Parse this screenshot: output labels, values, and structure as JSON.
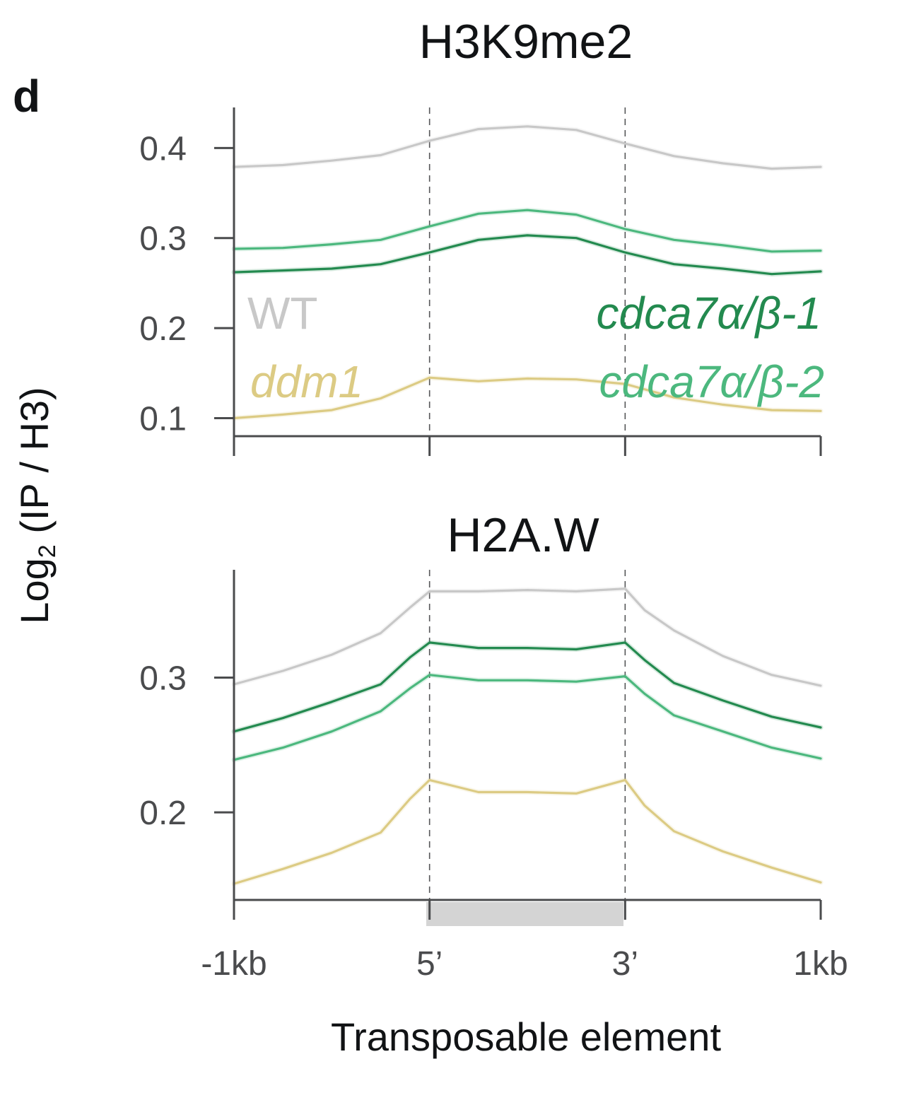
{
  "figure": {
    "panel_letter": "d",
    "shared_ylabel_prefix": "Log",
    "shared_ylabel_sub": "2",
    "shared_ylabel_suffix": " (IP / H3)",
    "xlabel": "Transposable element",
    "element_bar_color": "#d4d4d4"
  },
  "legend": [
    {
      "key": "WT",
      "label": "WT",
      "italic": false,
      "color": "#c8c8c8"
    },
    {
      "key": "cdca7_1",
      "label": "cdca7α/β-1",
      "italic": true,
      "color": "#238a4f"
    },
    {
      "key": "ddm1",
      "label": "ddm1",
      "italic": true,
      "color": "#dccb84"
    },
    {
      "key": "cdca7_2",
      "label": "cdca7α/β-2",
      "italic": true,
      "color": "#4cb87e"
    }
  ],
  "chart_data": [
    {
      "type": "line",
      "title": "H3K9me2",
      "xlabel": "Transposable element",
      "ylabel": "Log2 (IP / H3)",
      "x_ticks": [
        {
          "pos": 0,
          "label": "-1kb"
        },
        {
          "pos": 1,
          "label": "5’"
        },
        {
          "pos": 2,
          "label": "3’"
        },
        {
          "pos": 3,
          "label": "1kb"
        }
      ],
      "x_tick_labels_visible": false,
      "xlim": [
        0,
        3
      ],
      "ylim": [
        0.08,
        0.445
      ],
      "y_ticks": [
        0.1,
        0.2,
        0.3,
        0.4
      ],
      "y_tick_labels": [
        "0.1",
        "0.2",
        "0.3",
        "0.4"
      ],
      "boundaries": [
        1,
        2
      ],
      "grid": false,
      "legend": "inside, text labels (left & right)",
      "x": [
        0,
        0.25,
        0.5,
        0.75,
        1.0,
        1.25,
        1.5,
        1.75,
        2.0,
        2.25,
        2.5,
        2.75,
        3.0
      ],
      "series": [
        {
          "name": "WT",
          "key": "WT",
          "values": [
            0.379,
            0.381,
            0.386,
            0.392,
            0.408,
            0.421,
            0.424,
            0.42,
            0.405,
            0.391,
            0.383,
            0.377,
            0.379
          ]
        },
        {
          "name": "cdca7α/β-2",
          "key": "cdca7_2",
          "values": [
            0.288,
            0.289,
            0.293,
            0.298,
            0.313,
            0.327,
            0.331,
            0.326,
            0.31,
            0.298,
            0.292,
            0.285,
            0.286
          ]
        },
        {
          "name": "cdca7α/β-1",
          "key": "cdca7_1",
          "values": [
            0.262,
            0.264,
            0.266,
            0.271,
            0.284,
            0.298,
            0.303,
            0.3,
            0.284,
            0.271,
            0.266,
            0.26,
            0.263
          ]
        },
        {
          "name": "ddm1",
          "key": "ddm1",
          "values": [
            0.1,
            0.104,
            0.109,
            0.122,
            0.145,
            0.141,
            0.144,
            0.143,
            0.138,
            0.123,
            0.115,
            0.109,
            0.108
          ]
        }
      ]
    },
    {
      "type": "line",
      "title": "H2A.W",
      "xlabel": "Transposable element",
      "ylabel": "Log2 (IP / H3)",
      "x_ticks": [
        {
          "pos": 0,
          "label": "-1kb"
        },
        {
          "pos": 1,
          "label": "5’"
        },
        {
          "pos": 2,
          "label": "3’"
        },
        {
          "pos": 3,
          "label": "1kb"
        }
      ],
      "x_tick_labels_visible": true,
      "xlim": [
        0,
        3
      ],
      "ylim": [
        0.135,
        0.38
      ],
      "y_ticks": [
        0.2,
        0.3
      ],
      "y_tick_labels": [
        "0.2",
        "0.3"
      ],
      "boundaries": [
        1,
        2
      ],
      "element_span": [
        1,
        2
      ],
      "grid": false,
      "x": [
        0,
        0.25,
        0.5,
        0.75,
        0.9,
        1.0,
        1.25,
        1.5,
        1.75,
        2.0,
        2.1,
        2.25,
        2.5,
        2.75,
        3.0
      ],
      "series": [
        {
          "name": "WT",
          "key": "WT",
          "values": [
            0.295,
            0.305,
            0.317,
            0.333,
            0.352,
            0.364,
            0.364,
            0.365,
            0.364,
            0.366,
            0.35,
            0.335,
            0.316,
            0.302,
            0.294
          ]
        },
        {
          "name": "cdca7α/β-1",
          "key": "cdca7_1",
          "values": [
            0.26,
            0.27,
            0.282,
            0.295,
            0.315,
            0.326,
            0.322,
            0.322,
            0.321,
            0.326,
            0.313,
            0.296,
            0.283,
            0.271,
            0.263
          ]
        },
        {
          "name": "cdca7α/β-2",
          "key": "cdca7_2",
          "values": [
            0.239,
            0.248,
            0.26,
            0.275,
            0.292,
            0.302,
            0.298,
            0.298,
            0.297,
            0.301,
            0.288,
            0.272,
            0.26,
            0.248,
            0.24
          ]
        },
        {
          "name": "ddm1",
          "key": "ddm1",
          "values": [
            0.147,
            0.158,
            0.17,
            0.185,
            0.21,
            0.224,
            0.215,
            0.215,
            0.214,
            0.224,
            0.205,
            0.186,
            0.171,
            0.159,
            0.148
          ]
        }
      ]
    }
  ]
}
